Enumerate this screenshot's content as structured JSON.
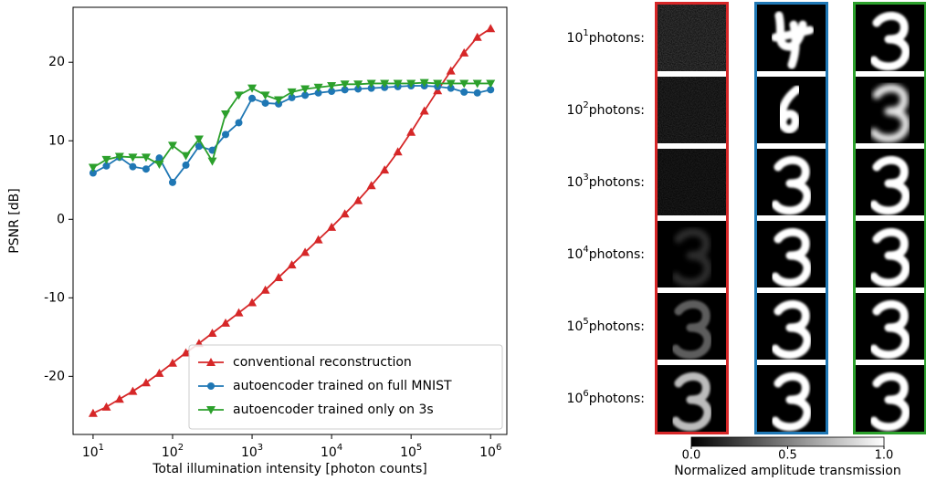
{
  "chart_data": [
    {
      "type": "line",
      "ylabel": "PSNR [dB]",
      "xlabel": "Total illumination intensity [photon counts]",
      "xscale": "log",
      "xlim": [
        5.6,
        1600000
      ],
      "ylim": [
        -27.4,
        27
      ],
      "xticks": [
        {
          "value": 10,
          "label": "10",
          "exponent": "1"
        },
        {
          "value": 100,
          "label": "10",
          "exponent": "2"
        },
        {
          "value": 1000,
          "label": "10",
          "exponent": "3"
        },
        {
          "value": 10000,
          "label": "10",
          "exponent": "4"
        },
        {
          "value": 100000,
          "label": "10",
          "exponent": "5"
        },
        {
          "value": 1000000,
          "label": "10",
          "exponent": "6"
        }
      ],
      "yticks": [
        -20,
        -10,
        0,
        10,
        20
      ],
      "legend": "lower right",
      "x": [
        10,
        14.7,
        21.5,
        31.6,
        46.4,
        68.1,
        100,
        147,
        215,
        316,
        464,
        681,
        1000,
        1468,
        2154,
        3162,
        4642,
        6813,
        10000,
        14678,
        21544,
        31623,
        46416,
        68129,
        100000,
        146780,
        215443,
        316228,
        464159,
        681292,
        1000000
      ],
      "series": [
        {
          "name": "conventional reconstruction",
          "color": "#d62728",
          "marker": "triangle-up",
          "values": [
            -24.7,
            -23.9,
            -22.9,
            -21.9,
            -20.8,
            -19.6,
            -18.3,
            -17.0,
            -15.8,
            -14.5,
            -13.2,
            -11.9,
            -10.6,
            -9.0,
            -7.4,
            -5.8,
            -4.2,
            -2.6,
            -1.0,
            0.7,
            2.4,
            4.3,
            6.3,
            8.6,
            11.1,
            13.8,
            16.4,
            18.9,
            21.2,
            23.2,
            24.3
          ]
        },
        {
          "name": "autoencoder trained on full MNIST",
          "color": "#1f77b4",
          "marker": "circle",
          "values": [
            5.9,
            6.8,
            7.9,
            6.7,
            6.4,
            7.8,
            4.7,
            6.9,
            9.3,
            8.8,
            10.8,
            12.3,
            15.4,
            14.8,
            14.7,
            15.5,
            15.8,
            16.1,
            16.3,
            16.5,
            16.6,
            16.7,
            16.8,
            16.9,
            17.0,
            17.0,
            16.9,
            16.7,
            16.2,
            16.1,
            16.5
          ]
        },
        {
          "name": "autoencoder trained only on 3s",
          "color": "#2ca02c",
          "marker": "triangle-down",
          "values": [
            6.6,
            7.6,
            8.0,
            7.9,
            7.9,
            7.0,
            9.4,
            8.1,
            10.2,
            7.4,
            13.4,
            15.8,
            16.7,
            15.8,
            15.2,
            16.2,
            16.6,
            16.8,
            17.0,
            17.2,
            17.2,
            17.3,
            17.3,
            17.3,
            17.3,
            17.4,
            17.3,
            17.3,
            17.3,
            17.3,
            17.3
          ]
        }
      ]
    },
    {
      "type": "image-grid",
      "rows": [
        {
          "base": "10",
          "exponent": "1",
          "suffix": "photons:"
        },
        {
          "base": "10",
          "exponent": "2",
          "suffix": "photons:"
        },
        {
          "base": "10",
          "exponent": "3",
          "suffix": "photons:"
        },
        {
          "base": "10",
          "exponent": "4",
          "suffix": "photons:"
        },
        {
          "base": "10",
          "exponent": "5",
          "suffix": "photons:"
        },
        {
          "base": "10",
          "exponent": "6",
          "suffix": "photons:"
        }
      ],
      "column_colors": [
        "#d62728",
        "#1f77b4",
        "#2ca02c"
      ],
      "colorbar_label": "Normalized amplitude transmission",
      "colorbar_lim": [
        0,
        1
      ],
      "colorbar_ticks": [
        {
          "value": 0,
          "label": "0.0"
        },
        0.5,
        {
          "value": 1,
          "label": "1.0"
        }
      ]
    }
  ]
}
